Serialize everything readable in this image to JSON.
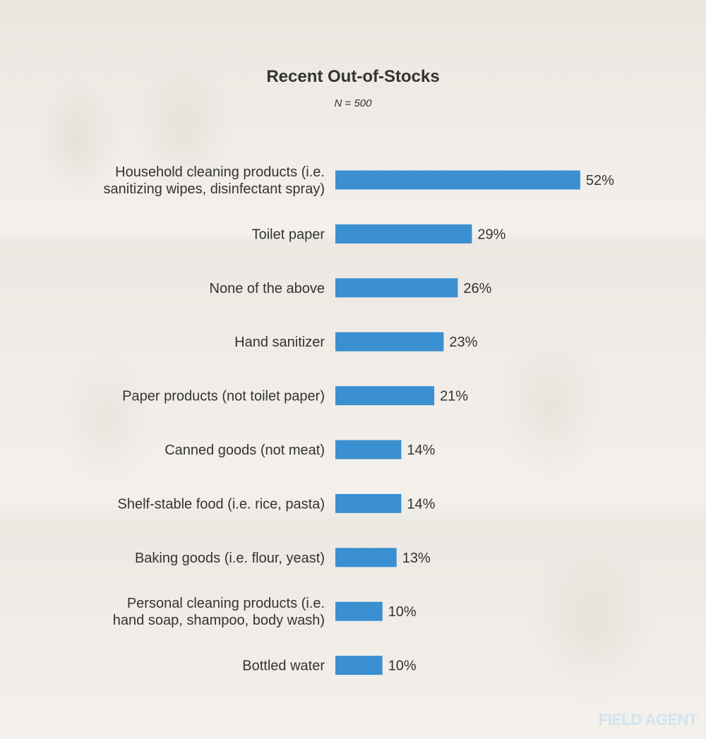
{
  "brand": {
    "logo_text": "FIELD AGENT"
  },
  "colors": {
    "bar": "#3a8fd0",
    "text": "#333333"
  },
  "chart_data": {
    "type": "bar",
    "orientation": "horizontal",
    "title": "Recent Out-of-Stocks",
    "subtitle": "N = 500",
    "categories": [
      [
        "Household cleaning products (i.e.",
        "sanitizing wipes, disinfectant spray)"
      ],
      [
        "Toilet paper"
      ],
      [
        "None of the above"
      ],
      [
        "Hand sanitizer"
      ],
      [
        "Paper products (not toilet paper)"
      ],
      [
        "Canned goods (not meat)"
      ],
      [
        "Shelf-stable food (i.e. rice, pasta)"
      ],
      [
        "Baking goods (i.e. flour, yeast)"
      ],
      [
        "Personal cleaning products (i.e.",
        "hand soap, shampoo, body wash)"
      ],
      [
        "Bottled water"
      ]
    ],
    "values": [
      52,
      29,
      26,
      23,
      21,
      14,
      14,
      13,
      10,
      10
    ],
    "value_labels": [
      "52%",
      "29%",
      "26%",
      "23%",
      "21%",
      "14%",
      "14%",
      "13%",
      "10%",
      "10%"
    ],
    "unit": "%",
    "grid": false,
    "legend": "none"
  }
}
